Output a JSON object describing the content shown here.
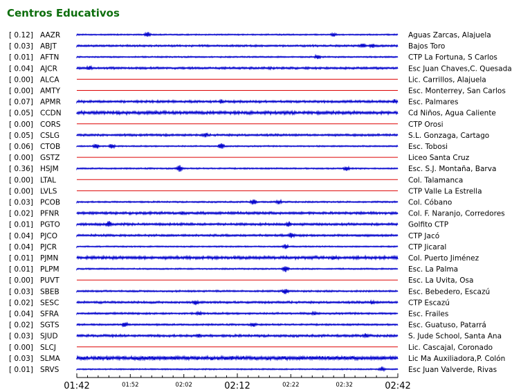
{
  "chart_data": {
    "type": "line",
    "title": "Centros Educativos",
    "x_ticks_major": [
      "01:42",
      "02:12",
      "02:42"
    ],
    "x_ticks_minor": [
      "01:52",
      "02:02",
      "02:22",
      "02:32"
    ],
    "series": [
      {
        "code": "AAZR",
        "level": "[ 0.12]",
        "site": "Aguas Zarcas, Alajuela",
        "noise": 0.1,
        "events": [
          [
            0.22,
            0.7
          ],
          [
            0.8,
            0.5
          ]
        ],
        "active": true
      },
      {
        "code": "ABJT",
        "level": "[ 0.03]",
        "site": "Bajos Toro",
        "noise": 0.25,
        "events": [
          [
            0.89,
            0.7
          ],
          [
            0.92,
            0.6
          ]
        ],
        "active": true
      },
      {
        "code": "AFTN",
        "level": "[ 0.01]",
        "site": "CTP La Fortuna, S Carlos",
        "noise": 0.12,
        "events": [
          [
            0.75,
            0.6
          ]
        ],
        "active": true
      },
      {
        "code": "AJCR",
        "level": "[ 0.04]",
        "site": "Esc Juan Chaves,C. Quesada",
        "noise": 0.3,
        "events": [
          [
            0.04,
            0.7
          ],
          [
            0.6,
            0.4
          ]
        ],
        "active": true
      },
      {
        "code": "ALCA",
        "level": "[ 0.00]",
        "site": "Lic. Carrillos, Alajuela",
        "noise": 0,
        "events": [],
        "active": false
      },
      {
        "code": "AMTY",
        "level": "[ 0.00]",
        "site": "Esc. Monterrey, San Carlos",
        "noise": 0,
        "events": [],
        "active": false
      },
      {
        "code": "APMR",
        "level": "[ 0.07]",
        "site": "Esc. Palmares",
        "noise": 0.35,
        "events": [
          [
            0.45,
            0.5
          ],
          [
            0.99,
            0.6
          ]
        ],
        "active": true
      },
      {
        "code": "CCDN",
        "level": "[ 0.05]",
        "site": "Cd Niños, Agua Caliente",
        "noise": 0.55,
        "events": [],
        "active": true
      },
      {
        "code": "CORS",
        "level": "[ 0.00]",
        "site": "CTP Orosi",
        "noise": 0,
        "events": [],
        "active": false
      },
      {
        "code": "CSLG",
        "level": "[ 0.05]",
        "site": "S.L. Gonzaga, Cartago",
        "noise": 0.3,
        "events": [
          [
            0.4,
            0.6
          ]
        ],
        "active": true
      },
      {
        "code": "CTOB",
        "level": "[ 0.06]",
        "site": "Esc. Tobosi",
        "noise": 0.12,
        "events": [
          [
            0.06,
            0.8
          ],
          [
            0.11,
            0.7
          ],
          [
            0.45,
            0.8
          ]
        ],
        "active": true
      },
      {
        "code": "GSTZ",
        "level": "[ 0.00]",
        "site": "Liceo Santa Cruz",
        "noise": 0,
        "events": [],
        "active": false
      },
      {
        "code": "HSJM",
        "level": "[ 0.36]",
        "site": "Esc. S.J. Montaña, Barva",
        "noise": 0.12,
        "events": [
          [
            0.32,
            0.9
          ],
          [
            0.84,
            0.6
          ]
        ],
        "active": true
      },
      {
        "code": "LTAL",
        "level": "[ 0.00]",
        "site": "Col. Talamanca",
        "noise": 0,
        "events": [],
        "active": false
      },
      {
        "code": "LVLS",
        "level": "[ 0.00]",
        "site": "CTP Valle La Estrella",
        "noise": 0,
        "events": [],
        "active": false
      },
      {
        "code": "PCOB",
        "level": "[ 0.03]",
        "site": "Col. Cóbano",
        "noise": 0.15,
        "events": [
          [
            0.55,
            0.8
          ],
          [
            0.63,
            0.6
          ]
        ],
        "active": true
      },
      {
        "code": "PFNR",
        "level": "[ 0.02]",
        "site": "Col. F. Naranjo, Corredores",
        "noise": 0.4,
        "events": [
          [
            0.33,
            0.5
          ]
        ],
        "active": true
      },
      {
        "code": "PGTO",
        "level": "[ 0.01]",
        "site": "Golfito CTP",
        "noise": 0.35,
        "events": [
          [
            0.1,
            0.8
          ],
          [
            0.66,
            0.7
          ]
        ],
        "active": true
      },
      {
        "code": "PJCO",
        "level": "[ 0.04]",
        "site": "CTP Jacó",
        "noise": 0.3,
        "events": [
          [
            0.67,
            0.8
          ]
        ],
        "active": true
      },
      {
        "code": "PJCR",
        "level": "[ 0.04]",
        "site": "CTP Jicaral",
        "noise": 0.1,
        "events": [
          [
            0.65,
            0.6
          ]
        ],
        "active": true
      },
      {
        "code": "PJMN",
        "level": "[ 0.01]",
        "site": "Col. Puerto Jiménez",
        "noise": 0.5,
        "events": [
          [
            0.8,
            0.6
          ]
        ],
        "active": true
      },
      {
        "code": "PLPM",
        "level": "[ 0.01]",
        "site": "Esc. La Palma",
        "noise": 0.12,
        "events": [
          [
            0.65,
            0.9
          ]
        ],
        "active": true
      },
      {
        "code": "PUVT",
        "level": "[ 0.00]",
        "site": "Esc. La Uvita, Osa",
        "noise": 0,
        "events": [],
        "active": false
      },
      {
        "code": "SBEB",
        "level": "[ 0.03]",
        "site": "Esc. Bebedero, Escazú",
        "noise": 0.2,
        "events": [
          [
            0.65,
            0.8
          ]
        ],
        "active": true
      },
      {
        "code": "SESC",
        "level": "[ 0.02]",
        "site": "CTP Escazú",
        "noise": 0.3,
        "events": [
          [
            0.37,
            0.7
          ],
          [
            0.92,
            0.5
          ]
        ],
        "active": true
      },
      {
        "code": "SFRA",
        "level": "[ 0.04]",
        "site": "Esc. Frailes",
        "noise": 0.25,
        "events": [
          [
            0.38,
            0.6
          ],
          [
            0.74,
            0.5
          ]
        ],
        "active": true
      },
      {
        "code": "SGTS",
        "level": "[ 0.02]",
        "site": "Esc. Guatuso, Patarrá",
        "noise": 0.2,
        "events": [
          [
            0.15,
            0.7
          ],
          [
            0.55,
            0.6
          ]
        ],
        "active": true
      },
      {
        "code": "SJUD",
        "level": "[ 0.03]",
        "site": "S. Jude School, Santa Ana",
        "noise": 0.35,
        "events": [
          [
            0.38,
            0.5
          ],
          [
            0.9,
            0.6
          ]
        ],
        "active": true
      },
      {
        "code": "SLCJ",
        "level": "[ 0.00]",
        "site": "Lic. Cascajal, Coronado",
        "noise": 0,
        "events": [],
        "active": false
      },
      {
        "code": "SLMA",
        "level": "[ 0.03]",
        "site": "Lic Ma Auxiliadora,P. Colón",
        "noise": 0.75,
        "events": [],
        "active": true
      },
      {
        "code": "SRVS",
        "level": "[ 0.01]",
        "site": "Esc Juan Valverde, Rivas",
        "noise": 0.1,
        "events": [
          [
            0.95,
            0.6
          ]
        ],
        "active": true
      }
    ],
    "active_color": "#0000cc",
    "inactive_color": "#dd0000"
  }
}
